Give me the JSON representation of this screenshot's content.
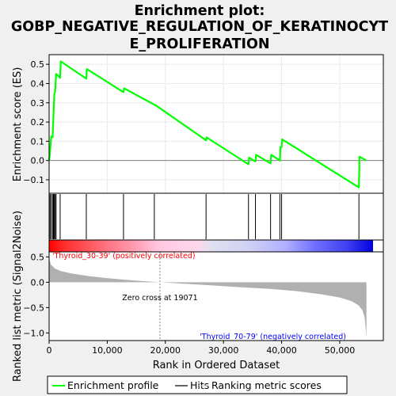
{
  "title_lines": [
    "Enrichment plot:",
    "GOBP_NEGATIVE_REGULATION_OF_KERATINOCYT",
    "E_PROLIFERATION"
  ],
  "colors": {
    "es_line": "#00ff00",
    "hit_line": "#000000",
    "metric_fill": "#b0b0b0",
    "pos_label": "#ff0000",
    "neg_label": "#0000ff",
    "zero_line": "#808080"
  },
  "chart_data": {
    "type": "line",
    "panels": {
      "enrichment": {
        "ylabel": "Enrichment score (ES)",
        "ylim": [
          -0.17,
          0.55
        ],
        "yticks": [
          -0.1,
          0.0,
          0.1,
          0.2,
          0.3,
          0.4,
          0.5
        ],
        "ytick_labels": [
          "−0.1",
          "0.0",
          "0.1",
          "0.2",
          "0.3",
          "0.4",
          "0.5"
        ],
        "grid": true,
        "series": [
          {
            "name": "Enrichment profile",
            "x": [
              0,
              150,
              350,
              600,
              750,
              900,
              1050,
              1200,
              1900,
              2000,
              6400,
              6500,
              12800,
              12900,
              18100,
              18200,
              27000,
              27100,
              34300,
              34400,
              35500,
              35600,
              38100,
              38200,
              39700,
              39800,
              40000,
              40100,
              53300,
              53400,
              54600
            ],
            "y": [
              0.0,
              0.04,
              0.125,
              0.12,
              0.235,
              0.345,
              0.36,
              0.45,
              0.43,
              0.515,
              0.425,
              0.475,
              0.355,
              0.375,
              0.29,
              0.29,
              0.105,
              0.12,
              -0.02,
              0.015,
              -0.005,
              0.03,
              -0.015,
              0.03,
              0.0,
              0.07,
              0.07,
              0.11,
              -0.14,
              0.02,
              0.0
            ]
          }
        ]
      },
      "hits": {
        "name": "Hits",
        "positions": [
          150,
          350,
          600,
          750,
          900,
          1050,
          1200,
          1900,
          6400,
          12800,
          18100,
          27000,
          34300,
          35500,
          38100,
          39700,
          40000,
          53300
        ]
      },
      "ranking": {
        "ylabel": "Ranked list metric (Signal2Noise)",
        "ylim": [
          -1.15,
          0.6
        ],
        "yticks": [
          -1.0,
          -0.5,
          0.0,
          0.5
        ],
        "ytick_labels": [
          "−1.0",
          "−0.5",
          "0.0",
          "0.5"
        ],
        "series": [
          {
            "name": "Ranking metric scores",
            "x": [
              0,
              300,
              1000,
              2000,
              4000,
              7000,
              10000,
              14000,
              19071,
              25000,
              32000,
              38000,
              43000,
              47000,
              50000,
              52000,
              53200,
              53900,
              54300,
              54500,
              54600
            ],
            "y": [
              0.48,
              0.35,
              0.27,
              0.22,
              0.17,
              0.12,
              0.08,
              0.04,
              0.0,
              -0.04,
              -0.09,
              -0.13,
              -0.18,
              -0.24,
              -0.3,
              -0.37,
              -0.45,
              -0.55,
              -0.7,
              -0.95,
              -1.1
            ]
          }
        ]
      }
    },
    "xlabel": "Rank in Ordered Dataset",
    "xlim": [
      0,
      57500
    ],
    "xticks": [
      0,
      10000,
      20000,
      30000,
      40000,
      50000
    ],
    "xtick_labels": [
      "0",
      "10,000",
      "20,000",
      "30,000",
      "40,000",
      "50,000"
    ],
    "dataset_size": 54600,
    "zero_cross": 19071,
    "zero_cross_label": "Zero cross at 19071",
    "positive_label": "'Thyroid_30-39' (positively correlated)",
    "negative_label": "'Thyroid_70-79' (negatively correlated)",
    "heatmap_colors": [
      "#ff0000",
      "#ff6670",
      "#ffb3cf",
      "#d8d8f0",
      "#a0a0ff",
      "#0000ff"
    ],
    "legend": [
      "Enrichment profile",
      "Hits",
      "Ranking metric scores"
    ],
    "legend_placement": "bottom"
  }
}
